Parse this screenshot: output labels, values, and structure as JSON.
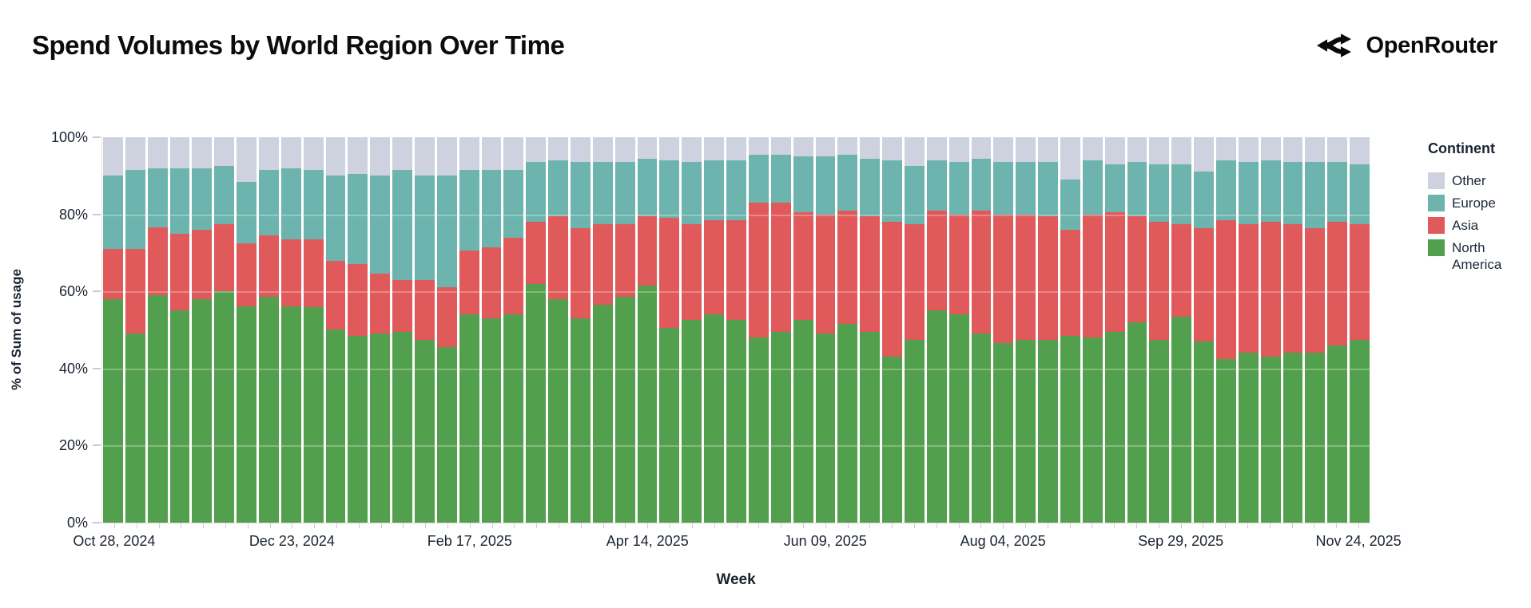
{
  "header": {
    "title": "Spend Volumes by World Region Over Time",
    "brand": "OpenRouter"
  },
  "legend": {
    "title": "Continent",
    "items": [
      {
        "label": "Other",
        "color": "#ced2df"
      },
      {
        "label": "Europe",
        "color": "#6cb4ad"
      },
      {
        "label": "Asia",
        "color": "#e05a5b"
      },
      {
        "label": "North America",
        "color": "#52a04d"
      }
    ]
  },
  "chart_data": {
    "type": "bar",
    "subtype": "100%-stacked-weekly",
    "title": "Spend Volumes by World Region Over Time",
    "xlabel": "Week",
    "ylabel": "% of Sum of usage",
    "ylim": [
      0,
      100
    ],
    "y_tick_labels": [
      "0%",
      "20%",
      "40%",
      "60%",
      "80%",
      "100%"
    ],
    "y_tick_values": [
      0,
      20,
      40,
      60,
      80,
      100
    ],
    "grid": "subtle-white-overlay",
    "legend_position": "right",
    "legend_title": "Continent",
    "weeks_count": 57,
    "x_tick_every_n_bars": 8,
    "x_tick_labels": [
      "Oct 28, 2024",
      "Dec 23, 2024",
      "Feb 17, 2025",
      "Apr 14, 2025",
      "Jun 09, 2025",
      "Aug 04, 2025",
      "Sep 29, 2025",
      "Nov 24, 2025"
    ],
    "stack_order_bottom_to_top": [
      "North America",
      "Asia",
      "Europe",
      "Other"
    ],
    "colors": {
      "North America": "#52a04d",
      "Asia": "#e05a5b",
      "Europe": "#6cb4ad",
      "Other": "#ced2df"
    },
    "series": [
      {
        "name": "North America",
        "values": [
          58,
          49,
          59,
          55,
          58,
          60,
          56,
          58.5,
          56,
          56,
          50,
          48.5,
          49,
          49.5,
          47.5,
          45.5,
          54,
          53,
          54,
          62,
          58,
          53,
          56.5,
          58.5,
          61.5,
          50.5,
          52.5,
          54,
          52.5,
          48,
          49.5,
          52.5,
          49,
          51.5,
          49.5,
          43,
          47.5,
          55,
          54,
          49,
          46.5,
          47.5,
          47.5,
          48.5,
          48,
          49.5,
          52,
          47.5,
          53.5,
          47,
          42.5,
          44,
          43,
          44,
          44,
          46,
          47.5
        ]
      },
      {
        "name": "Asia",
        "values": [
          13,
          22,
          17.5,
          20,
          18,
          17.5,
          16.5,
          16,
          17.5,
          17.5,
          18,
          18.5,
          15.5,
          13.5,
          15.5,
          15.5,
          16.5,
          18.5,
          20,
          16,
          21.5,
          23.5,
          21,
          19,
          18,
          28.5,
          25,
          24.5,
          26,
          35,
          33.5,
          28,
          31,
          29.5,
          30,
          35,
          30,
          26,
          26,
          32,
          33.5,
          32.5,
          32,
          27.5,
          32,
          31,
          27.5,
          30.5,
          24,
          29.5,
          36,
          33.5,
          35,
          33.5,
          32.5,
          32,
          30
        ]
      },
      {
        "name": "Europe",
        "values": [
          19,
          20.5,
          15.5,
          17,
          16,
          15,
          16,
          17,
          18.5,
          18,
          22,
          23.5,
          25.5,
          28.5,
          27,
          29,
          21,
          20,
          17.5,
          15.5,
          14.5,
          17,
          16,
          16,
          15,
          15,
          16,
          15.5,
          15.5,
          12.5,
          12.5,
          14.5,
          15,
          14.5,
          15,
          16,
          15,
          13,
          13.5,
          13.5,
          13.5,
          13.5,
          14,
          13,
          14,
          12.5,
          14,
          15,
          15.5,
          14.5,
          15.5,
          16,
          16,
          16,
          17,
          15.5,
          15.5
        ]
      },
      {
        "name": "Other",
        "values": [
          10,
          8.5,
          8,
          8,
          8,
          7.5,
          11.5,
          8.5,
          8,
          8.5,
          10,
          9.5,
          10,
          8.5,
          10,
          10,
          8.5,
          8.5,
          8.5,
          6.5,
          6,
          6.5,
          6.5,
          6.5,
          5.5,
          6,
          6.5,
          6,
          6,
          4.5,
          4.5,
          5,
          5,
          4.5,
          5.5,
          6,
          7.5,
          6,
          6.5,
          5.5,
          6.5,
          6.5,
          6.5,
          11,
          6,
          7,
          6.5,
          7,
          7,
          9,
          6,
          6.5,
          6,
          6.5,
          6.5,
          6.5,
          7
        ]
      }
    ]
  }
}
